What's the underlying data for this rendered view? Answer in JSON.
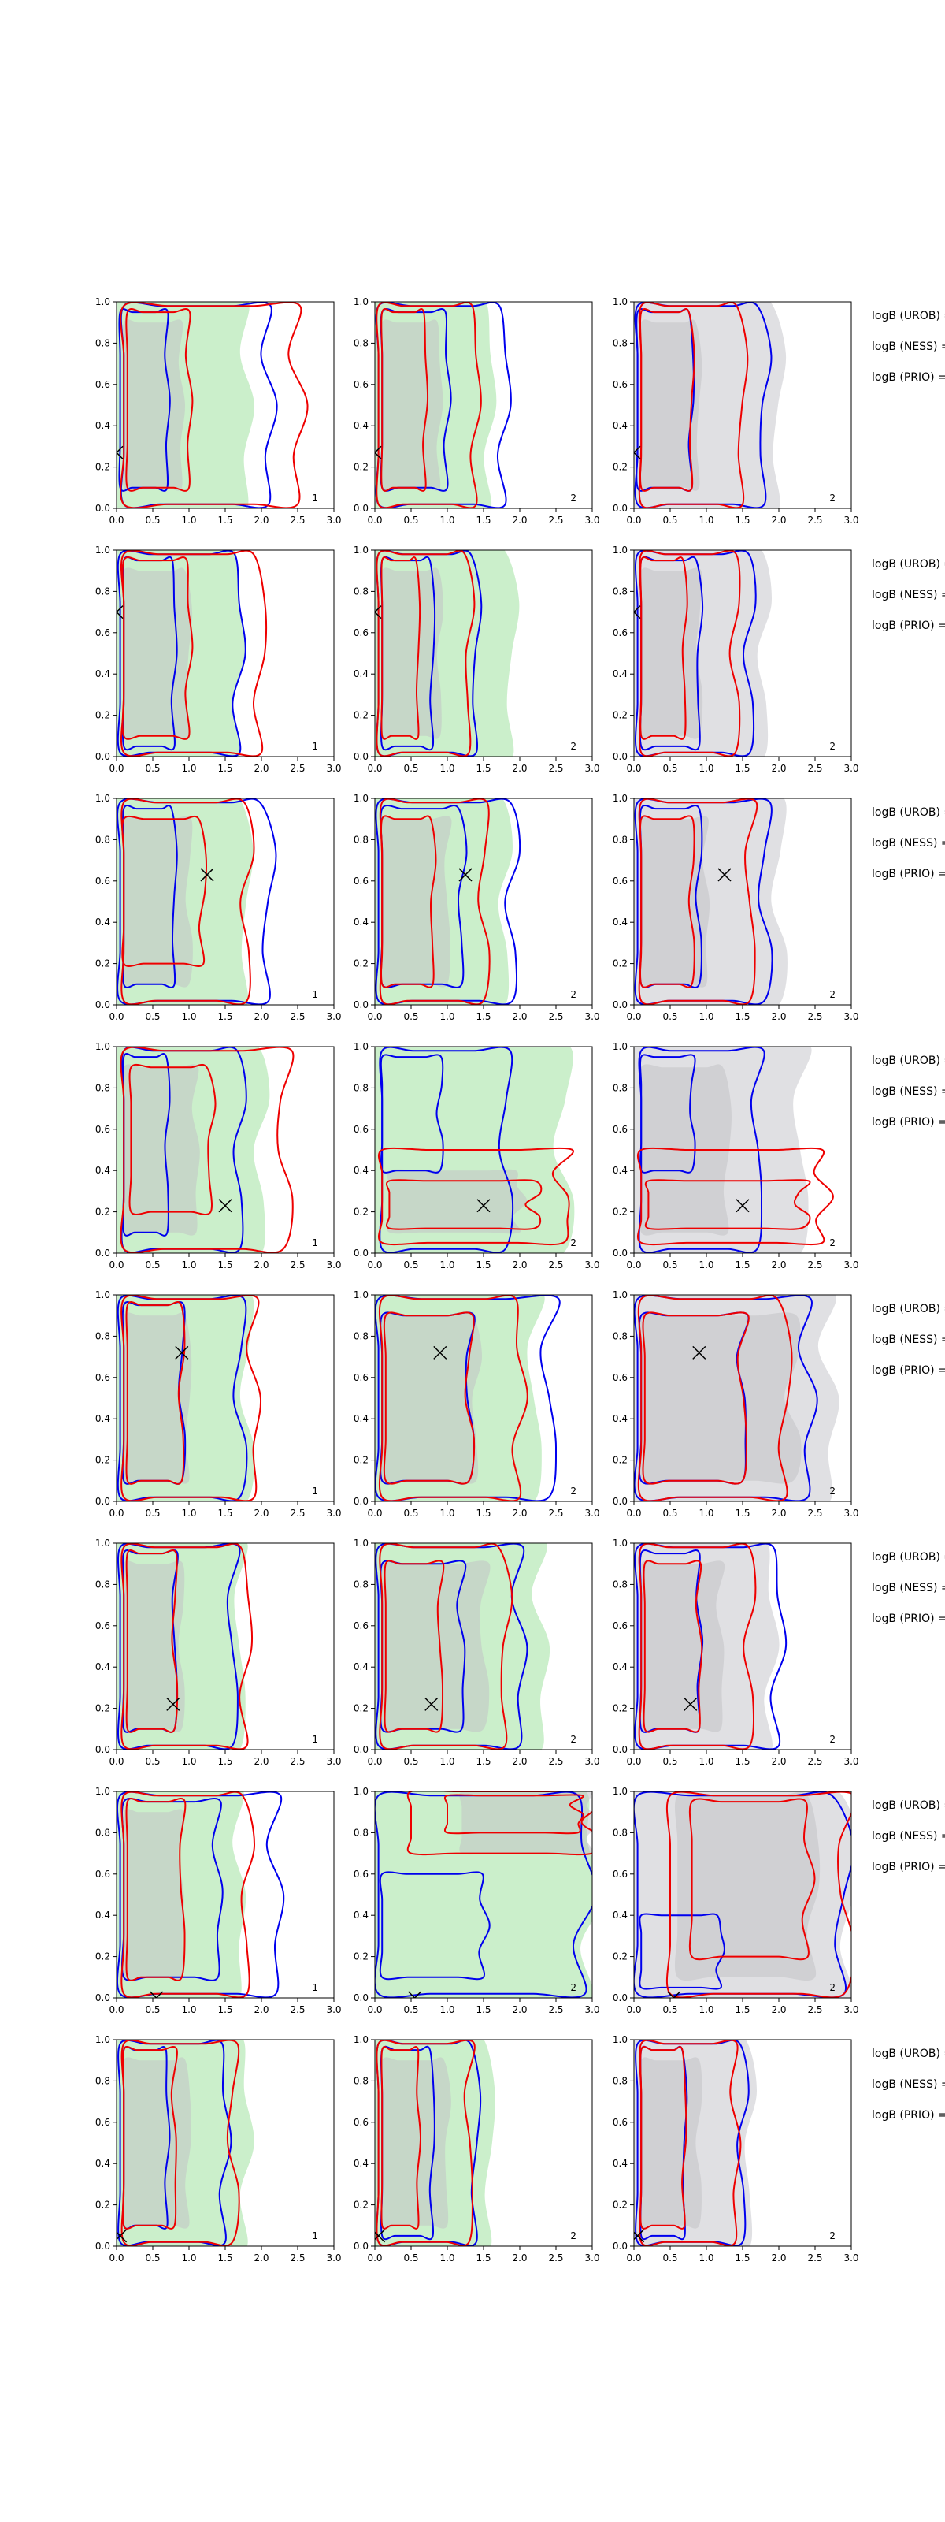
{
  "figure": {
    "row_side_labels": [
      "logB (UROB) =",
      "logB (NESS) =",
      "logB (PRIO) ="
    ]
  },
  "chart_data": {
    "type": "contour",
    "grid": {
      "rows": 8,
      "cols": 3
    },
    "xlim": [
      0.0,
      3.0
    ],
    "ylim": [
      0.0,
      1.0
    ],
    "x_ticks": [
      "0.0",
      "0.5",
      "1.0",
      "1.5",
      "2.0",
      "2.5",
      "3.0"
    ],
    "y_ticks": [
      "0.0",
      "0.2",
      "0.4",
      "0.6",
      "0.8",
      "1.0"
    ],
    "column_fill_colors": [
      "#b9eab9",
      "#b9eab9",
      "#d6d6da"
    ],
    "line_colors": {
      "blue": "#0000ee",
      "red": "#ee0000"
    },
    "panel_corner_labels": [
      [
        "1",
        "2",
        "2"
      ],
      [
        "1",
        "2",
        "2"
      ],
      [
        "1",
        "2",
        "2"
      ],
      [
        "1",
        "2",
        "2"
      ],
      [
        "1",
        "2",
        "2"
      ],
      [
        "1",
        "2",
        "2"
      ],
      [
        "1",
        "2",
        "2"
      ],
      [
        "1",
        "2",
        "2"
      ]
    ],
    "true_points": [
      [
        0.0,
        0.27
      ],
      [
        0.0,
        0.7
      ],
      [
        1.25,
        0.63
      ],
      [
        1.5,
        0.23
      ],
      [
        0.9,
        0.72
      ],
      [
        0.78,
        0.22
      ],
      [
        0.55,
        0.0
      ],
      [
        0.05,
        0.05
      ]
    ],
    "regions": [
      [
        {
          "outer": [
            0.0,
            1.8,
            0.0,
            1.0
          ],
          "inner": [
            0.1,
            0.9,
            0.1,
            0.9
          ],
          "blue_outer": [
            0.1,
            2.1,
            0.02,
            0.98
          ],
          "blue_inner": [
            0.05,
            0.7,
            0.1,
            0.95
          ],
          "red_outer": [
            0.1,
            2.5,
            0.02,
            0.98
          ],
          "red_inner": [
            0.15,
            1.0,
            0.1,
            0.95
          ]
        },
        {
          "outer": [
            0.0,
            1.6,
            0.0,
            1.0
          ],
          "inner": [
            0.1,
            0.9,
            0.1,
            0.9
          ],
          "blue_outer": [
            0.05,
            1.8,
            0.02,
            0.98
          ],
          "blue_inner": [
            0.1,
            1.0,
            0.1,
            0.95
          ],
          "red_outer": [
            0.05,
            1.4,
            0.02,
            0.98
          ],
          "red_inner": [
            0.1,
            0.7,
            0.1,
            0.95
          ]
        },
        {
          "outer": [
            0.0,
            2.0,
            0.0,
            1.0
          ],
          "inner": [
            0.1,
            0.9,
            0.1,
            0.9
          ],
          "blue_outer": [
            0.05,
            1.8,
            0.02,
            0.98
          ],
          "blue_inner": [
            0.05,
            0.8,
            0.1,
            0.95
          ],
          "red_outer": [
            0.1,
            1.5,
            0.02,
            0.98
          ],
          "red_inner": [
            0.1,
            0.8,
            0.1,
            0.95
          ]
        }
      ],
      [
        {
          "outer": [
            0.0,
            1.7,
            0.0,
            1.0
          ],
          "inner": [
            0.1,
            1.0,
            0.1,
            0.9
          ],
          "blue_outer": [
            0.05,
            1.7,
            0.02,
            0.98
          ],
          "blue_inner": [
            0.1,
            0.8,
            0.05,
            0.95
          ],
          "red_outer": [
            0.1,
            2.0,
            0.02,
            0.98
          ],
          "red_inner": [
            0.1,
            1.0,
            0.1,
            0.95
          ]
        },
        {
          "outer": [
            0.0,
            1.9,
            0.0,
            1.0
          ],
          "inner": [
            0.1,
            0.9,
            0.1,
            0.9
          ],
          "blue_outer": [
            0.05,
            1.4,
            0.02,
            0.98
          ],
          "blue_inner": [
            0.1,
            0.8,
            0.05,
            0.95
          ],
          "red_outer": [
            0.05,
            1.3,
            0.02,
            0.98
          ],
          "red_inner": [
            0.1,
            0.6,
            0.1,
            0.95
          ]
        },
        {
          "outer": [
            0.0,
            1.8,
            0.0,
            1.0
          ],
          "inner": [
            0.1,
            0.9,
            0.1,
            0.9
          ],
          "blue_outer": [
            0.05,
            1.6,
            0.02,
            0.98
          ],
          "blue_inner": [
            0.1,
            0.9,
            0.05,
            0.95
          ],
          "red_outer": [
            0.1,
            1.4,
            0.02,
            0.98
          ],
          "red_inner": [
            0.1,
            0.7,
            0.1,
            0.95
          ]
        }
      ],
      [
        {
          "outer": [
            0.0,
            1.8,
            0.0,
            1.0
          ],
          "inner": [
            0.1,
            1.0,
            0.1,
            0.9
          ],
          "blue_outer": [
            0.05,
            2.1,
            0.02,
            0.98
          ],
          "blue_inner": [
            0.1,
            0.8,
            0.1,
            0.95
          ],
          "red_outer": [
            0.1,
            1.8,
            0.02,
            0.98
          ],
          "red_inner": [
            0.1,
            1.2,
            0.2,
            0.9
          ]
        },
        {
          "outer": [
            0.0,
            1.8,
            0.0,
            1.0
          ],
          "inner": [
            0.1,
            1.0,
            0.1,
            0.9
          ],
          "blue_outer": [
            0.05,
            1.9,
            0.02,
            0.98
          ],
          "blue_inner": [
            0.1,
            1.2,
            0.1,
            0.95
          ],
          "red_outer": [
            0.1,
            1.5,
            0.02,
            0.98
          ],
          "red_inner": [
            0.1,
            0.8,
            0.1,
            0.9
          ]
        },
        {
          "outer": [
            0.0,
            2.0,
            0.0,
            1.0
          ],
          "inner": [
            0.1,
            1.0,
            0.1,
            0.9
          ],
          "blue_outer": [
            0.05,
            1.8,
            0.02,
            0.98
          ],
          "blue_inner": [
            0.1,
            0.9,
            0.1,
            0.95
          ],
          "red_outer": [
            0.1,
            1.6,
            0.02,
            0.98
          ],
          "red_inner": [
            0.1,
            0.8,
            0.1,
            0.9
          ]
        }
      ],
      [
        {
          "outer": [
            0.0,
            2.0,
            0.0,
            1.0
          ],
          "inner": [
            0.1,
            1.1,
            0.1,
            0.9
          ],
          "blue_outer": [
            0.1,
            1.7,
            0.02,
            0.98
          ],
          "blue_inner": [
            0.1,
            0.7,
            0.1,
            0.95
          ],
          "red_outer": [
            0.1,
            2.3,
            0.02,
            0.98
          ],
          "red_inner": [
            0.2,
            1.3,
            0.2,
            0.9
          ]
        },
        {
          "outer": [
            0.0,
            2.6,
            0.0,
            1.0
          ],
          "inner": [
            0.2,
            2.0,
            0.1,
            0.4
          ],
          "blue_outer": [
            0.1,
            1.8,
            0.02,
            0.98
          ],
          "blue_inner": [
            0.1,
            0.9,
            0.4,
            0.95
          ],
          "red_outer": [
            0.1,
            2.6,
            0.05,
            0.5
          ],
          "red_inner": [
            0.2,
            2.2,
            0.12,
            0.35
          ]
        },
        {
          "outer": [
            0.0,
            2.3,
            0.0,
            1.0
          ],
          "inner": [
            0.1,
            1.3,
            0.1,
            0.9
          ],
          "blue_outer": [
            0.1,
            1.7,
            0.02,
            0.98
          ],
          "blue_inner": [
            0.1,
            0.8,
            0.4,
            0.95
          ],
          "red_outer": [
            0.1,
            2.6,
            0.05,
            0.5
          ],
          "red_inner": [
            0.2,
            2.3,
            0.12,
            0.35
          ]
        }
      ],
      [
        {
          "outer": [
            0.0,
            1.8,
            0.0,
            1.0
          ],
          "inner": [
            0.1,
            1.0,
            0.1,
            0.9
          ],
          "blue_outer": [
            0.05,
            1.7,
            0.02,
            0.98
          ],
          "blue_inner": [
            0.1,
            0.9,
            0.1,
            0.95
          ],
          "red_outer": [
            0.1,
            1.9,
            0.02,
            0.98
          ],
          "red_inner": [
            0.15,
            0.9,
            0.1,
            0.95
          ]
        },
        {
          "outer": [
            0.0,
            2.2,
            0.0,
            1.0
          ],
          "inner": [
            0.1,
            1.4,
            0.1,
            0.9
          ],
          "blue_outer": [
            0.05,
            2.4,
            0.02,
            0.98
          ],
          "blue_inner": [
            0.1,
            1.3,
            0.1,
            0.9
          ],
          "red_outer": [
            0.1,
            2.0,
            0.02,
            0.98
          ],
          "red_inner": [
            0.15,
            1.3,
            0.1,
            0.9
          ]
        },
        {
          "outer": [
            0.0,
            2.7,
            0.0,
            1.0
          ],
          "inner": [
            0.1,
            2.2,
            0.1,
            0.9
          ],
          "blue_outer": [
            0.05,
            2.4,
            0.02,
            0.98
          ],
          "blue_inner": [
            0.1,
            1.5,
            0.1,
            0.9
          ],
          "red_outer": [
            0.1,
            2.1,
            0.02,
            0.98
          ],
          "red_inner": [
            0.15,
            1.5,
            0.1,
            0.9
          ]
        }
      ],
      [
        {
          "outer": [
            0.0,
            1.7,
            0.0,
            1.0
          ],
          "inner": [
            0.1,
            0.9,
            0.1,
            0.9
          ],
          "blue_outer": [
            0.05,
            1.6,
            0.02,
            0.98
          ],
          "blue_inner": [
            0.1,
            0.8,
            0.1,
            0.95
          ],
          "red_outer": [
            0.1,
            1.8,
            0.02,
            0.98
          ],
          "red_inner": [
            0.15,
            0.8,
            0.1,
            0.95
          ]
        },
        {
          "outer": [
            0.0,
            2.3,
            0.0,
            1.0
          ],
          "inner": [
            0.1,
            1.5,
            0.1,
            0.9
          ],
          "blue_outer": [
            0.05,
            2.0,
            0.02,
            0.98
          ],
          "blue_inner": [
            0.1,
            1.2,
            0.1,
            0.9
          ],
          "red_outer": [
            0.1,
            1.8,
            0.02,
            0.98
          ],
          "red_inner": [
            0.15,
            0.9,
            0.1,
            0.9
          ]
        },
        {
          "outer": [
            0.0,
            1.9,
            0.0,
            1.0
          ],
          "inner": [
            0.1,
            1.2,
            0.1,
            0.9
          ],
          "blue_outer": [
            0.05,
            2.0,
            0.02,
            0.98
          ],
          "blue_inner": [
            0.1,
            0.9,
            0.1,
            0.95
          ],
          "red_outer": [
            0.1,
            1.6,
            0.02,
            0.98
          ],
          "red_inner": [
            0.15,
            0.9,
            0.1,
            0.9
          ]
        }
      ],
      [
        {
          "outer": [
            0.0,
            1.7,
            0.0,
            1.0
          ],
          "inner": [
            0.1,
            0.9,
            0.1,
            0.9
          ],
          "blue_outer": [
            0.05,
            2.2,
            0.02,
            0.98
          ],
          "blue_inner": [
            0.1,
            1.4,
            0.1,
            0.95
          ],
          "red_outer": [
            0.1,
            1.8,
            0.02,
            0.98
          ],
          "red_inner": [
            0.15,
            0.9,
            0.1,
            0.95
          ]
        },
        {
          "outer": [
            0.0,
            3.0,
            0.0,
            1.0
          ],
          "inner": [
            1.2,
            3.0,
            0.7,
            1.0
          ],
          "blue_outer": [
            0.05,
            2.9,
            0.02,
            0.98
          ],
          "blue_inner": [
            0.1,
            1.5,
            0.1,
            0.6
          ],
          "red_outer": [
            0.5,
            3.0,
            0.7,
            1.0
          ],
          "red_inner": [
            1.0,
            2.8,
            0.8,
            0.98
          ]
        },
        {
          "outer": [
            0.0,
            3.0,
            0.0,
            1.0
          ],
          "inner": [
            0.6,
            2.5,
            0.1,
            0.98
          ],
          "blue_outer": [
            0.05,
            2.9,
            0.02,
            0.98
          ],
          "blue_inner": [
            0.1,
            1.2,
            0.05,
            0.4
          ],
          "red_outer": [
            0.5,
            2.9,
            0.02,
            0.98
          ],
          "red_inner": [
            0.8,
            2.4,
            0.2,
            0.95
          ]
        }
      ],
      [
        {
          "outer": [
            0.0,
            1.8,
            0.0,
            1.0
          ],
          "inner": [
            0.1,
            1.0,
            0.1,
            0.9
          ],
          "blue_outer": [
            0.05,
            1.5,
            0.02,
            0.98
          ],
          "blue_inner": [
            0.1,
            0.7,
            0.1,
            0.95
          ],
          "red_outer": [
            0.1,
            1.6,
            0.02,
            0.98
          ],
          "red_inner": [
            0.1,
            0.8,
            0.1,
            0.95
          ]
        },
        {
          "outer": [
            0.0,
            1.6,
            0.0,
            1.0
          ],
          "inner": [
            0.1,
            1.0,
            0.1,
            0.9
          ],
          "blue_outer": [
            0.05,
            1.4,
            0.02,
            0.98
          ],
          "blue_inner": [
            0.1,
            0.8,
            0.05,
            0.95
          ],
          "red_outer": [
            0.05,
            1.3,
            0.02,
            0.98
          ],
          "red_inner": [
            0.1,
            0.6,
            0.1,
            0.95
          ]
        },
        {
          "outer": [
            0.0,
            1.6,
            0.0,
            1.0
          ],
          "inner": [
            0.1,
            0.9,
            0.1,
            0.9
          ],
          "blue_outer": [
            0.05,
            1.5,
            0.02,
            0.98
          ],
          "blue_inner": [
            0.1,
            0.7,
            0.05,
            0.95
          ],
          "red_outer": [
            0.1,
            1.4,
            0.02,
            0.98
          ],
          "red_inner": [
            0.1,
            0.7,
            0.1,
            0.95
          ]
        }
      ]
    ]
  }
}
